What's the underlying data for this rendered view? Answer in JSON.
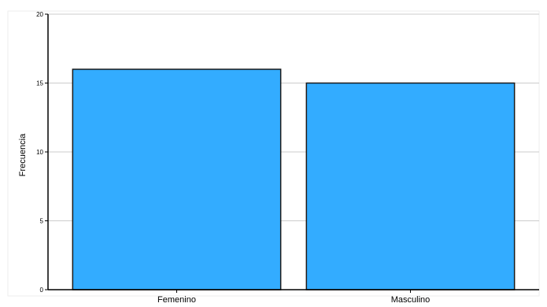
{
  "chart_data": {
    "type": "bar",
    "categories": [
      "Femenino",
      "Masculino"
    ],
    "values": [
      16,
      15
    ],
    "title": "",
    "xlabel": "",
    "ylabel": "Frecuencia",
    "ylim": [
      0,
      20
    ],
    "yticks": [
      0,
      5,
      10,
      15,
      20
    ],
    "ytick_labels": [
      "0",
      "5",
      "10",
      "15",
      "20"
    ],
    "grid": true,
    "colors": {
      "bar_fill": "#33ACFF",
      "bar_stroke": "#1A1A1A",
      "grid": "#CCCCCC",
      "axis": "#000000"
    }
  }
}
